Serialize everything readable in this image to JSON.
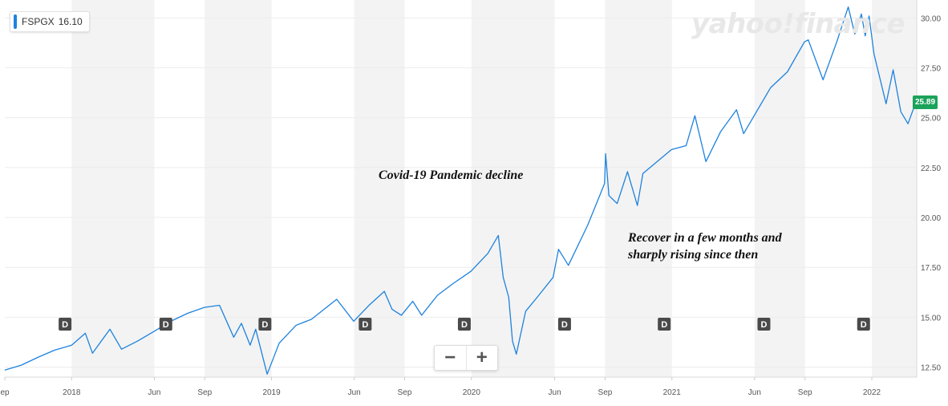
{
  "ticker": {
    "symbol": "FSPGX",
    "value": "16.10"
  },
  "watermark": "yahoo!finance",
  "last_price": "25.89",
  "annotations": [
    "Covid-19 Pandemic decline",
    "Recover in a few months and",
    "sharply rising since then"
  ],
  "zoom": {
    "out": "−",
    "in": "+"
  },
  "colors": {
    "line": "#1d82de",
    "last_price_bg": "#1aa35b",
    "band": "#f3f3f3",
    "marker": "#4a4a4a"
  },
  "chart_data": {
    "type": "line",
    "x_range": [
      "2017-09-01",
      "2022-03-24"
    ],
    "ylim": [
      12.0,
      30.9
    ],
    "y_ticks": [
      "12.50",
      "15.00",
      "17.50",
      "20.00",
      "22.50",
      "25.00",
      "27.50",
      "30.00"
    ],
    "x_ticks": [
      {
        "date": "2017-09-01",
        "label": "ep"
      },
      {
        "date": "2018-01-01",
        "label": "2018"
      },
      {
        "date": "2018-06-01",
        "label": "Jun"
      },
      {
        "date": "2018-09-01",
        "label": "Sep"
      },
      {
        "date": "2019-01-01",
        "label": "2019"
      },
      {
        "date": "2019-06-01",
        "label": "Jun"
      },
      {
        "date": "2019-09-01",
        "label": "Sep"
      },
      {
        "date": "2020-01-01",
        "label": "2020"
      },
      {
        "date": "2020-06-01",
        "label": "Jun"
      },
      {
        "date": "2020-09-01",
        "label": "Sep"
      },
      {
        "date": "2021-01-01",
        "label": "2021"
      },
      {
        "date": "2021-06-01",
        "label": "Jun"
      },
      {
        "date": "2021-09-01",
        "label": "Sep"
      },
      {
        "date": "2022-01-01",
        "label": "2022"
      }
    ],
    "dividend_markers": [
      "2017-12-20",
      "2018-06-22",
      "2018-12-20",
      "2019-06-21",
      "2019-12-19",
      "2020-06-19",
      "2020-12-18",
      "2021-06-18",
      "2021-12-17"
    ],
    "marker_label": "D",
    "series": [
      {
        "points": [
          [
            "2017-09-01",
            12.35
          ],
          [
            "2017-10-01",
            12.6
          ],
          [
            "2017-11-01",
            13.0
          ],
          [
            "2017-12-01",
            13.35
          ],
          [
            "2018-01-01",
            13.6
          ],
          [
            "2018-01-26",
            14.2
          ],
          [
            "2018-02-08",
            13.2
          ],
          [
            "2018-03-12",
            14.4
          ],
          [
            "2018-04-02",
            13.4
          ],
          [
            "2018-05-01",
            13.8
          ],
          [
            "2018-06-01",
            14.3
          ],
          [
            "2018-07-01",
            14.8
          ],
          [
            "2018-08-01",
            15.2
          ],
          [
            "2018-09-01",
            15.5
          ],
          [
            "2018-09-28",
            15.6
          ],
          [
            "2018-10-24",
            14.0
          ],
          [
            "2018-11-07",
            14.7
          ],
          [
            "2018-11-23",
            13.6
          ],
          [
            "2018-12-03",
            14.4
          ],
          [
            "2018-12-24",
            12.15
          ],
          [
            "2019-01-15",
            13.7
          ],
          [
            "2019-02-15",
            14.6
          ],
          [
            "2019-03-15",
            14.9
          ],
          [
            "2019-04-30",
            15.9
          ],
          [
            "2019-05-31",
            14.8
          ],
          [
            "2019-06-28",
            15.6
          ],
          [
            "2019-07-26",
            16.3
          ],
          [
            "2019-08-09",
            15.4
          ],
          [
            "2019-08-26",
            15.1
          ],
          [
            "2019-09-16",
            15.8
          ],
          [
            "2019-10-02",
            15.1
          ],
          [
            "2019-10-31",
            16.1
          ],
          [
            "2019-11-29",
            16.7
          ],
          [
            "2019-12-31",
            17.3
          ],
          [
            "2020-01-31",
            18.2
          ],
          [
            "2020-02-19",
            19.1
          ],
          [
            "2020-02-28",
            17.0
          ],
          [
            "2020-03-09",
            16.0
          ],
          [
            "2020-03-16",
            13.8
          ],
          [
            "2020-03-23",
            13.15
          ],
          [
            "2020-04-09",
            15.3
          ],
          [
            "2020-04-30",
            16.0
          ],
          [
            "2020-05-29",
            17.0
          ],
          [
            "2020-06-08",
            18.4
          ],
          [
            "2020-06-26",
            17.6
          ],
          [
            "2020-07-31",
            19.6
          ],
          [
            "2020-08-31",
            21.7
          ],
          [
            "2020-09-02",
            23.2
          ],
          [
            "2020-09-08",
            21.1
          ],
          [
            "2020-09-23",
            20.7
          ],
          [
            "2020-10-12",
            22.3
          ],
          [
            "2020-10-30",
            20.6
          ],
          [
            "2020-11-09",
            22.2
          ],
          [
            "2020-12-31",
            23.4
          ],
          [
            "2021-01-27",
            23.6
          ],
          [
            "2021-02-12",
            25.1
          ],
          [
            "2021-03-04",
            22.8
          ],
          [
            "2021-03-31",
            24.3
          ],
          [
            "2021-04-29",
            25.4
          ],
          [
            "2021-05-12",
            24.2
          ],
          [
            "2021-06-30",
            26.5
          ],
          [
            "2021-07-31",
            27.3
          ],
          [
            "2021-08-31",
            28.8
          ],
          [
            "2021-09-07",
            28.9
          ],
          [
            "2021-10-04",
            26.9
          ],
          [
            "2021-10-29",
            28.8
          ],
          [
            "2021-11-19",
            30.55
          ],
          [
            "2021-12-01",
            29.2
          ],
          [
            "2021-12-13",
            30.2
          ],
          [
            "2021-12-20",
            29.1
          ],
          [
            "2021-12-27",
            30.1
          ],
          [
            "2022-01-05",
            28.2
          ],
          [
            "2022-01-27",
            25.7
          ],
          [
            "2022-02-09",
            27.4
          ],
          [
            "2022-02-23",
            25.3
          ],
          [
            "2022-03-08",
            24.7
          ],
          [
            "2022-03-24",
            25.89
          ]
        ]
      }
    ]
  }
}
